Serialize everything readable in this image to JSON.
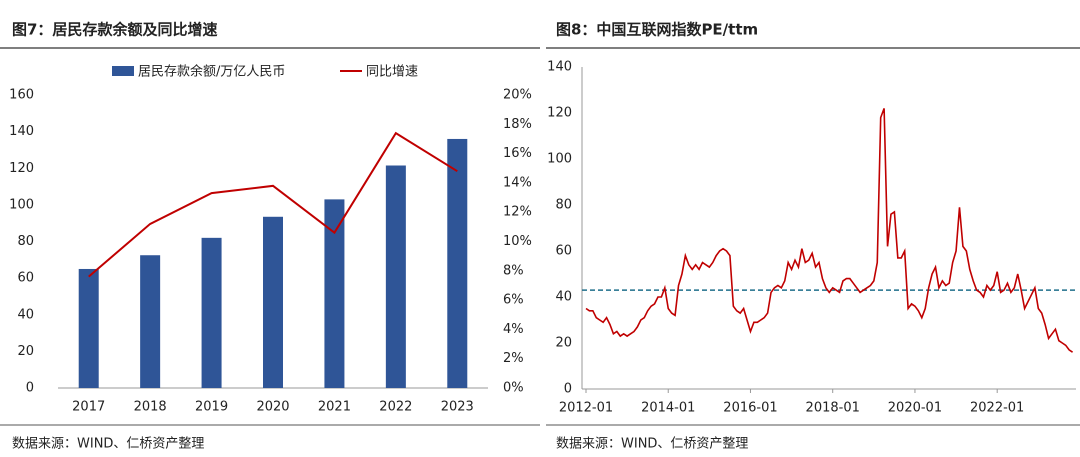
{
  "chart_data": [
    {
      "type": "bar",
      "title": "图7：居民存款余额及同比增速",
      "source": "数据来源：WIND、仁桥资产整理",
      "categories": [
        "2017",
        "2018",
        "2019",
        "2020",
        "2021",
        "2022",
        "2023"
      ],
      "series": [
        {
          "name": "居民存款余额/万亿人民币",
          "color": "#2f5597",
          "type": "bar",
          "values": [
            65,
            72.5,
            82,
            93.5,
            103,
            121.5,
            136
          ]
        },
        {
          "name": "同比增速",
          "color": "#c00000",
          "type": "line",
          "axis": "y2",
          "values": [
            7.6,
            11.2,
            13.3,
            13.8,
            10.6,
            17.4,
            14.8
          ]
        }
      ],
      "ylim": [
        0,
        160
      ],
      "yticks": [
        0,
        20,
        40,
        60,
        80,
        100,
        120,
        140,
        160
      ],
      "y2lim": [
        0,
        20
      ],
      "y2ticks": [
        {
          "value": 0,
          "label": "0%"
        },
        {
          "value": 2,
          "label": "2%"
        },
        {
          "value": 4,
          "label": "4%"
        },
        {
          "value": 6,
          "label": "6%"
        },
        {
          "value": 8,
          "label": "8%"
        },
        {
          "value": 10,
          "label": "10%"
        },
        {
          "value": 12,
          "label": "12%"
        },
        {
          "value": 14,
          "label": "14%"
        },
        {
          "value": 16,
          "label": "16%"
        },
        {
          "value": 18,
          "label": "18%"
        },
        {
          "value": 20,
          "label": "20%"
        }
      ],
      "legend": "top"
    },
    {
      "type": "line",
      "title": "图8：中国互联网指数PE/ttm",
      "source": "数据来源：WIND、仁桥资产整理",
      "color": "#c00000",
      "reference_line": 43,
      "reference_color": "#1f6f8b",
      "x": [
        "2012-01",
        "2012-02",
        "2012-03",
        "2012-04",
        "2012-05",
        "2012-06",
        "2012-07",
        "2012-08",
        "2012-09",
        "2012-10",
        "2012-11",
        "2012-12",
        "2013-01",
        "2013-02",
        "2013-03",
        "2013-04",
        "2013-05",
        "2013-06",
        "2013-07",
        "2013-08",
        "2013-09",
        "2013-10",
        "2013-11",
        "2013-12",
        "2014-01",
        "2014-02",
        "2014-03",
        "2014-04",
        "2014-05",
        "2014-06",
        "2014-07",
        "2014-08",
        "2014-09",
        "2014-10",
        "2014-11",
        "2014-12",
        "2015-01",
        "2015-02",
        "2015-03",
        "2015-04",
        "2015-05",
        "2015-06",
        "2015-07",
        "2015-08",
        "2015-09",
        "2015-10",
        "2015-11",
        "2015-12",
        "2016-01",
        "2016-02",
        "2016-03",
        "2016-04",
        "2016-05",
        "2016-06",
        "2016-07",
        "2016-08",
        "2016-09",
        "2016-10",
        "2016-11",
        "2016-12",
        "2017-01",
        "2017-02",
        "2017-03",
        "2017-04",
        "2017-05",
        "2017-06",
        "2017-07",
        "2017-08",
        "2017-09",
        "2017-10",
        "2017-11",
        "2017-12",
        "2018-01",
        "2018-02",
        "2018-03",
        "2018-04",
        "2018-05",
        "2018-06",
        "2018-07",
        "2018-08",
        "2018-09",
        "2018-10",
        "2018-11",
        "2018-12",
        "2019-01",
        "2019-02",
        "2019-03",
        "2019-04",
        "2019-05",
        "2019-06",
        "2019-07",
        "2019-08",
        "2019-09",
        "2019-10",
        "2019-11",
        "2019-12",
        "2020-01",
        "2020-02",
        "2020-03",
        "2020-04",
        "2020-05",
        "2020-06",
        "2020-07",
        "2020-08",
        "2020-09",
        "2020-10",
        "2020-11",
        "2020-12",
        "2021-01",
        "2021-02",
        "2021-03",
        "2021-04",
        "2021-05",
        "2021-06",
        "2021-07",
        "2021-08",
        "2021-09",
        "2021-10",
        "2021-11",
        "2021-12",
        "2022-01",
        "2022-02",
        "2022-03",
        "2022-04",
        "2022-05",
        "2022-06",
        "2022-07",
        "2022-08",
        "2022-09",
        "2022-10",
        "2022-11",
        "2022-12",
        "2023-01",
        "2023-02",
        "2023-03",
        "2023-04",
        "2023-05",
        "2023-06",
        "2023-07",
        "2023-08",
        "2023-09",
        "2023-10",
        "2023-11"
      ],
      "values": [
        35,
        34,
        34,
        31,
        30,
        29,
        31,
        28,
        24,
        25,
        23,
        24,
        23,
        24,
        25,
        27,
        30,
        31,
        34,
        36,
        37,
        40,
        40,
        44,
        35,
        33,
        32,
        45,
        50,
        58,
        54,
        52,
        54,
        52,
        55,
        54,
        53,
        55,
        58,
        60,
        61,
        60,
        58,
        36,
        34,
        33,
        35,
        30,
        25,
        29,
        29,
        30,
        31,
        33,
        42,
        44,
        45,
        44,
        47,
        55,
        52,
        56,
        53,
        61,
        55,
        56,
        59,
        53,
        55,
        48,
        44,
        42,
        44,
        43,
        42,
        47,
        48,
        48,
        46,
        44,
        42,
        43,
        44,
        45,
        47,
        55,
        118,
        122,
        62,
        76,
        77,
        57,
        57,
        60,
        35,
        37,
        36,
        34,
        31,
        35,
        44,
        50,
        53,
        44,
        47,
        45,
        46,
        55,
        60,
        79,
        62,
        60,
        52,
        47,
        43,
        42,
        40,
        45,
        43,
        45,
        51,
        42,
        43,
        46,
        42,
        44,
        50,
        43,
        35,
        38,
        41,
        44,
        35,
        33,
        28,
        22,
        24,
        26,
        21,
        20,
        19,
        17,
        16
      ],
      "xlim": [
        "2012-01",
        "2023-12"
      ],
      "xticks": [
        "2012-01",
        "2014-01",
        "2016-01",
        "2018-01",
        "2020-01",
        "2022-01"
      ],
      "ylim": [
        0,
        140
      ],
      "yticks": [
        0,
        20,
        40,
        60,
        80,
        100,
        120,
        140
      ]
    }
  ]
}
